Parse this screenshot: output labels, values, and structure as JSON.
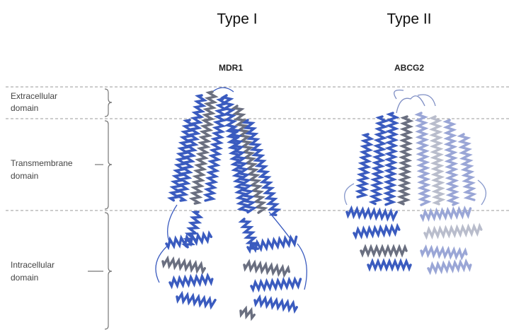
{
  "types": [
    {
      "label": "Type I",
      "protein": "MDR1"
    },
    {
      "label": "Type II",
      "protein": "ABCG2"
    }
  ],
  "domains": [
    {
      "lines": [
        "Extracellular",
        "domain"
      ]
    },
    {
      "lines": [
        "Transmembrane",
        "domain"
      ]
    },
    {
      "lines": [
        "Intracellular",
        "domain"
      ]
    }
  ]
}
